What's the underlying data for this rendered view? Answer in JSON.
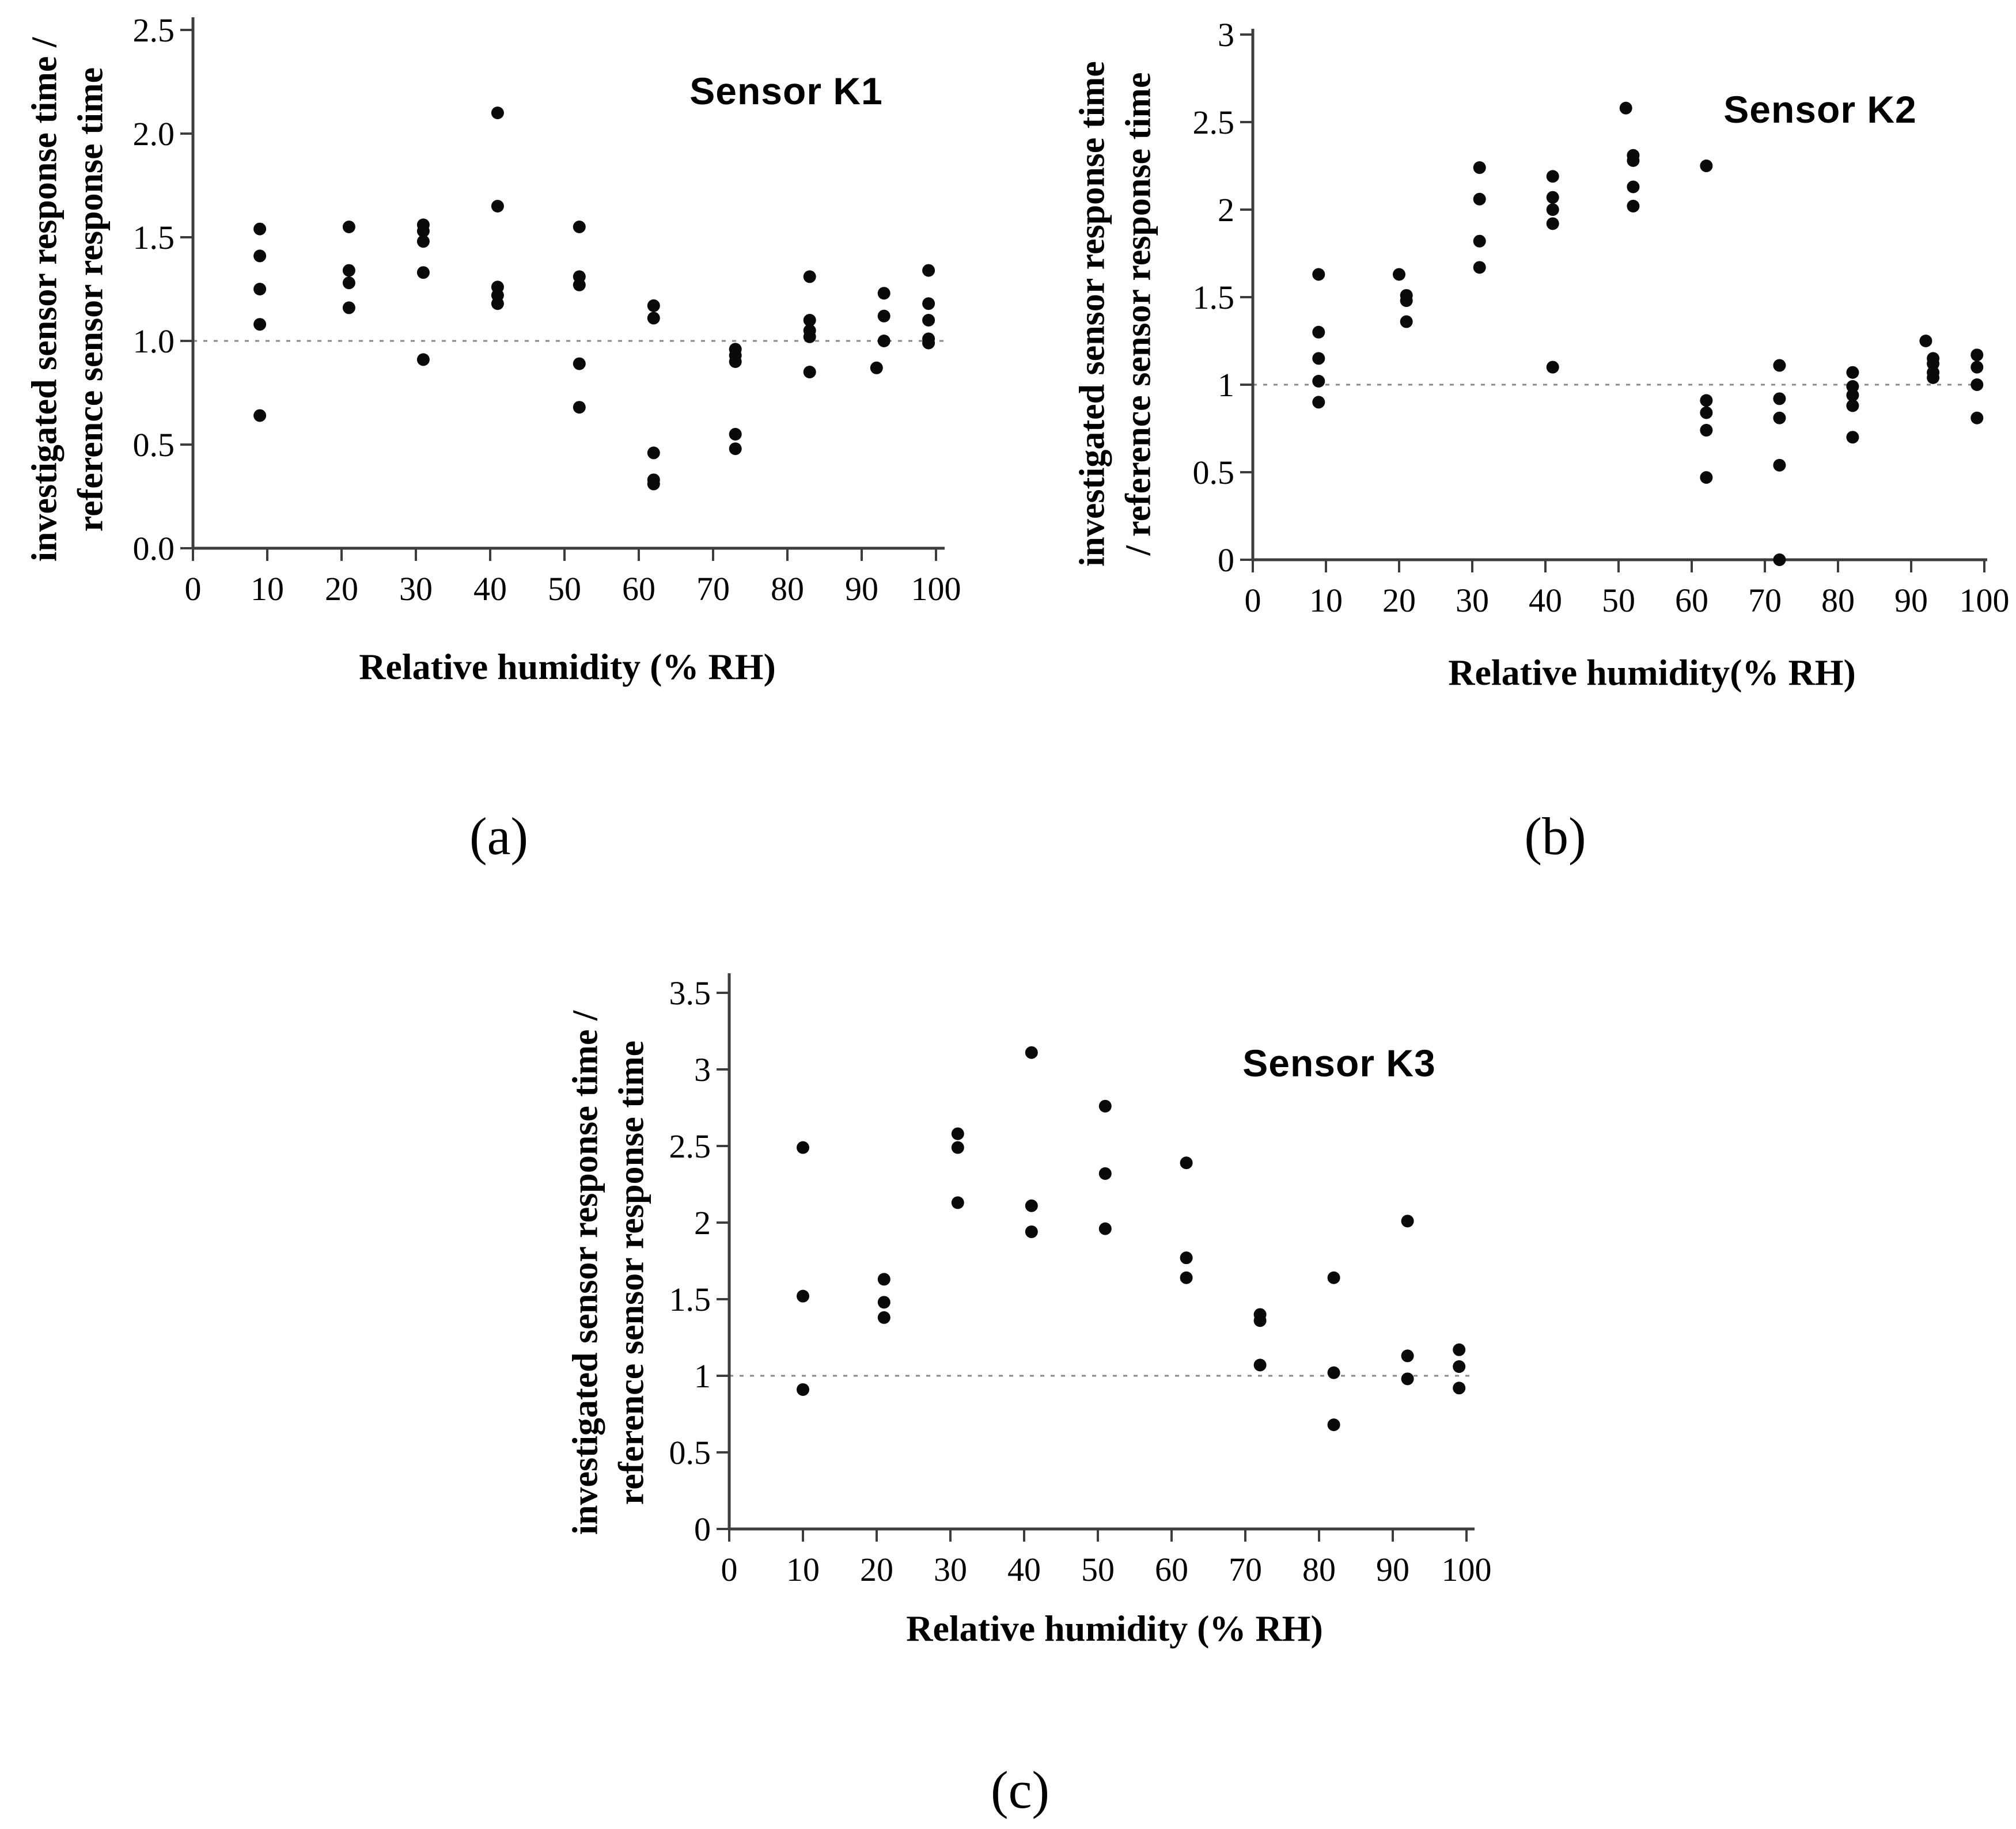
{
  "figure": {
    "background_color": "#ffffff",
    "point_color": "#0a0a0a",
    "axis_color": "#3d3d3d",
    "reference_line_color": "#8a8a8a",
    "text_color": "#000000",
    "description": "Three-panel scatter figure of sensor response time ratio versus relative humidity"
  },
  "chart_data": [
    {
      "id": "sensor-k1",
      "type": "scatter",
      "panel_label": "(a)",
      "title": "Sensor K1",
      "xlabel": "Relative humidity (% RH)",
      "ylabel_line1": "investigated sensor response time /",
      "ylabel_line2": "reference sensor response time",
      "xlim": [
        0,
        100
      ],
      "ylim": [
        0,
        2.5
      ],
      "xticks": [
        "0",
        "10",
        "20",
        "30",
        "40",
        "50",
        "60",
        "70",
        "80",
        "90",
        "100"
      ],
      "yticks": [
        "0.0",
        "0.5",
        "1.0",
        "1.5",
        "2.0",
        "2.5"
      ],
      "reference_line_y": 1.0,
      "grid": false,
      "legend": "none",
      "points": [
        [
          9,
          1.54
        ],
        [
          9,
          1.41
        ],
        [
          9,
          1.25
        ],
        [
          9,
          1.08
        ],
        [
          9,
          0.64
        ],
        [
          21,
          1.55
        ],
        [
          21,
          1.34
        ],
        [
          21,
          1.28
        ],
        [
          21,
          1.16
        ],
        [
          31,
          1.56
        ],
        [
          31,
          1.53
        ],
        [
          31,
          1.48
        ],
        [
          31,
          1.33
        ],
        [
          31,
          0.91
        ],
        [
          41,
          2.1
        ],
        [
          41,
          1.65
        ],
        [
          41,
          1.26
        ],
        [
          41,
          1.22
        ],
        [
          41,
          1.18
        ],
        [
          52,
          1.55
        ],
        [
          52,
          1.31
        ],
        [
          52,
          1.27
        ],
        [
          52,
          0.89
        ],
        [
          52,
          0.68
        ],
        [
          62,
          1.17
        ],
        [
          62,
          1.11
        ],
        [
          62,
          0.46
        ],
        [
          62,
          0.33
        ],
        [
          62,
          0.31
        ],
        [
          73,
          0.96
        ],
        [
          73,
          0.93
        ],
        [
          73,
          0.9
        ],
        [
          73,
          0.55
        ],
        [
          73,
          0.48
        ],
        [
          83,
          1.31
        ],
        [
          83,
          1.1
        ],
        [
          83,
          1.05
        ],
        [
          83,
          1.02
        ],
        [
          83,
          0.85
        ],
        [
          92,
          0.87
        ],
        [
          93,
          1.23
        ],
        [
          93,
          1.12
        ],
        [
          93,
          1.0
        ],
        [
          99,
          1.34
        ],
        [
          99,
          1.18
        ],
        [
          99,
          1.1
        ],
        [
          99,
          1.01
        ],
        [
          99,
          0.99
        ]
      ]
    },
    {
      "id": "sensor-k2",
      "type": "scatter",
      "panel_label": "(b)",
      "title": "Sensor K2",
      "xlabel": "Relative humidity(% RH)",
      "ylabel_line1": "investigated sensor response time",
      "ylabel_line2": "/ reference sensor response time",
      "xlim": [
        0,
        100
      ],
      "ylim": [
        0,
        3
      ],
      "xticks": [
        "0",
        "10",
        "20",
        "30",
        "40",
        "50",
        "60",
        "70",
        "80",
        "90",
        "100"
      ],
      "yticks": [
        "0",
        "0.5",
        "1",
        "1.5",
        "2",
        "2.5",
        "3"
      ],
      "reference_line_y": 1.0,
      "grid": false,
      "legend": "none",
      "points": [
        [
          9,
          1.63
        ],
        [
          9,
          1.3
        ],
        [
          9,
          1.15
        ],
        [
          9,
          1.02
        ],
        [
          9,
          0.9
        ],
        [
          20,
          1.63
        ],
        [
          21,
          1.51
        ],
        [
          21,
          1.48
        ],
        [
          21,
          1.36
        ],
        [
          31,
          2.24
        ],
        [
          31,
          2.06
        ],
        [
          31,
          1.82
        ],
        [
          31,
          1.67
        ],
        [
          41,
          2.19
        ],
        [
          41,
          2.07
        ],
        [
          41,
          2.0
        ],
        [
          41,
          1.92
        ],
        [
          41,
          1.1
        ],
        [
          51,
          2.58
        ],
        [
          52,
          2.31
        ],
        [
          52,
          2.28
        ],
        [
          52,
          2.13
        ],
        [
          52,
          2.02
        ],
        [
          62,
          2.25
        ],
        [
          62,
          0.91
        ],
        [
          62,
          0.84
        ],
        [
          62,
          0.74
        ],
        [
          62,
          0.47
        ],
        [
          72,
          1.11
        ],
        [
          72,
          0.92
        ],
        [
          72,
          0.81
        ],
        [
          72,
          0.54
        ],
        [
          72,
          0.0
        ],
        [
          82,
          1.07
        ],
        [
          82,
          0.99
        ],
        [
          82,
          0.94
        ],
        [
          82,
          0.88
        ],
        [
          82,
          0.7
        ],
        [
          92,
          1.25
        ],
        [
          93,
          1.15
        ],
        [
          93,
          1.12
        ],
        [
          93,
          1.07
        ],
        [
          93,
          1.04
        ],
        [
          99,
          1.17
        ],
        [
          99,
          1.1
        ],
        [
          99,
          1.0
        ],
        [
          99,
          0.81
        ]
      ]
    },
    {
      "id": "sensor-k3",
      "type": "scatter",
      "panel_label": "(c)",
      "title": "Sensor K3",
      "xlabel": "Relative humidity (% RH)",
      "ylabel_line1": "investigated sensor response time /",
      "ylabel_line2": "reference sensor response time",
      "xlim": [
        0,
        100
      ],
      "ylim": [
        0,
        3.5
      ],
      "xticks": [
        "0",
        "10",
        "20",
        "30",
        "40",
        "50",
        "60",
        "70",
        "80",
        "90",
        "100"
      ],
      "yticks": [
        "0",
        "0.5",
        "1",
        "1.5",
        "2",
        "2.5",
        "3",
        "3.5"
      ],
      "reference_line_y": 1.0,
      "grid": false,
      "legend": "none",
      "points": [
        [
          10,
          2.49
        ],
        [
          10,
          1.52
        ],
        [
          10,
          0.91
        ],
        [
          21,
          1.63
        ],
        [
          21,
          1.48
        ],
        [
          21,
          1.38
        ],
        [
          31,
          2.58
        ],
        [
          31,
          2.49
        ],
        [
          31,
          2.13
        ],
        [
          41,
          3.11
        ],
        [
          41,
          2.11
        ],
        [
          41,
          1.94
        ],
        [
          51,
          2.76
        ],
        [
          51,
          2.32
        ],
        [
          51,
          1.96
        ],
        [
          62,
          2.39
        ],
        [
          62,
          1.77
        ],
        [
          62,
          1.64
        ],
        [
          72,
          1.4
        ],
        [
          72,
          1.36
        ],
        [
          72,
          1.07
        ],
        [
          82,
          1.64
        ],
        [
          82,
          1.02
        ],
        [
          82,
          0.68
        ],
        [
          92,
          2.01
        ],
        [
          92,
          1.13
        ],
        [
          92,
          0.98
        ],
        [
          99,
          1.17
        ],
        [
          99,
          1.06
        ],
        [
          99,
          0.92
        ]
      ]
    }
  ]
}
